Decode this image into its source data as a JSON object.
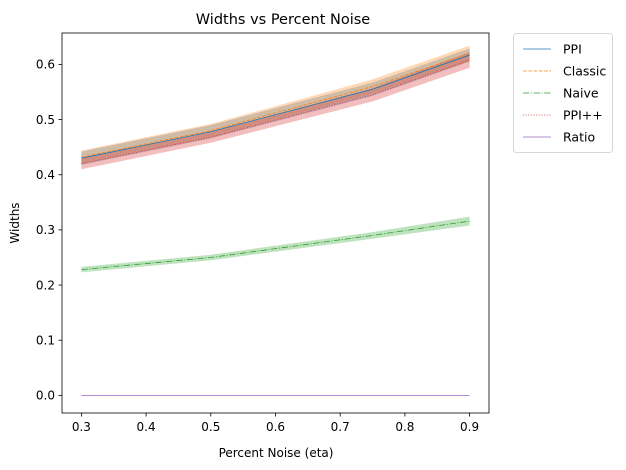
{
  "chart_data": {
    "type": "line",
    "title": "Widths vs Percent Noise",
    "xlabel": "Percent Noise (eta)",
    "ylabel": "Widths",
    "xlim": [
      0.27,
      0.93
    ],
    "ylim": [
      -0.032,
      0.657
    ],
    "x_ticks": [
      0.3,
      0.4,
      0.5,
      0.6,
      0.7,
      0.8,
      0.9
    ],
    "x_tick_labels": [
      "0.3",
      "0.4",
      "0.5",
      "0.6",
      "0.7",
      "0.8",
      "0.9"
    ],
    "y_ticks": [
      0.0,
      0.1,
      0.2,
      0.3,
      0.4,
      0.5,
      0.6
    ],
    "y_tick_labels": [
      "0.0",
      "0.1",
      "0.2",
      "0.3",
      "0.4",
      "0.5",
      "0.6"
    ],
    "grid": false,
    "legend_position": "outside-top-right",
    "x": [
      0.3,
      0.5,
      0.75,
      0.9
    ],
    "series": [
      {
        "name": "PPI",
        "color": "#1f77b4",
        "dash": "solid",
        "values": [
          0.43,
          0.478,
          0.555,
          0.617
        ],
        "band": [
          0.012,
          0.012,
          0.012,
          0.012
        ],
        "band_color": "#1f77b4"
      },
      {
        "name": "Classic",
        "color": "#ff7f0e",
        "dash": "dashed",
        "values": [
          0.432,
          0.48,
          0.56,
          0.62
        ],
        "band": [
          0.012,
          0.012,
          0.013,
          0.014
        ],
        "band_color": "#ff7f0e"
      },
      {
        "name": "Naive",
        "color": "#2ca02c",
        "dash": "dashdot",
        "values": [
          0.228,
          0.25,
          0.29,
          0.316
        ],
        "band": [
          0.005,
          0.005,
          0.006,
          0.008
        ],
        "band_color": "#2ca02c"
      },
      {
        "name": "PPI++",
        "color": "#d62728",
        "dash": "dotted",
        "values": [
          0.42,
          0.468,
          0.545,
          0.608
        ],
        "band": [
          0.01,
          0.01,
          0.012,
          0.014
        ],
        "band_color": "#d62728"
      },
      {
        "name": "Ratio",
        "color": "#9467bd",
        "dash": "solid",
        "values": [
          0.0,
          0.0,
          0.0,
          0.0
        ],
        "band": [
          0,
          0,
          0,
          0
        ],
        "band_color": "#9467bd"
      }
    ]
  }
}
